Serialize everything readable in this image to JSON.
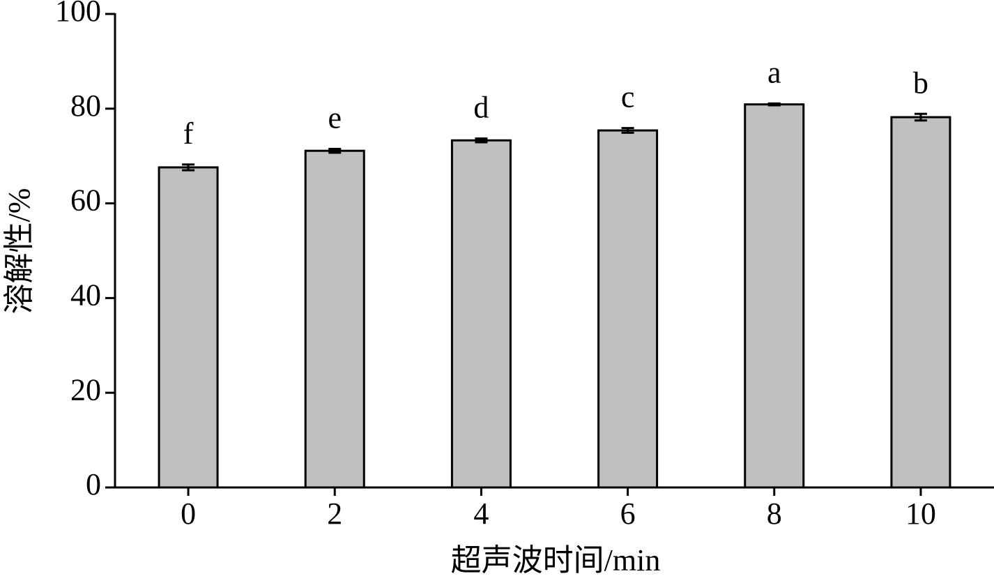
{
  "chart_data": {
    "type": "bar",
    "x_label": "超声波时间/min",
    "y_label": "溶解性/%",
    "categories": [
      "0",
      "2",
      "4",
      "6",
      "8",
      "10"
    ],
    "values": [
      67.6,
      71.1,
      73.3,
      75.4,
      80.9,
      78.2
    ],
    "errors": [
      0.6,
      0.4,
      0.4,
      0.5,
      0.2,
      0.7
    ],
    "labels": [
      "f",
      "e",
      "d",
      "c",
      "a",
      "b"
    ],
    "color": "#c0c0c0",
    "ylim": [
      0,
      100
    ],
    "yticks": [
      0,
      20,
      40,
      60,
      80,
      100
    ]
  }
}
